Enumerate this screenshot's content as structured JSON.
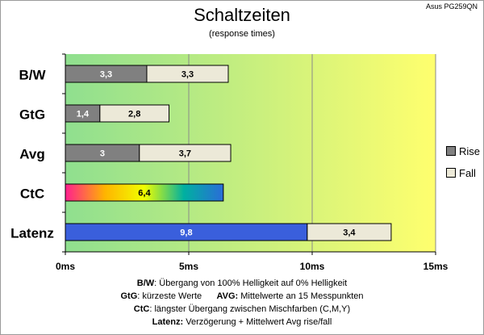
{
  "monitor_label": "Asus PG259QN",
  "chart_data": {
    "type": "bar",
    "orientation": "horizontal",
    "stacked": true,
    "title": "Schaltzeiten",
    "subtitle": "(response times)",
    "categories": [
      "B/W",
      "GtG",
      "Avg",
      "CtC",
      "Latenz"
    ],
    "series": [
      {
        "name": "Rise",
        "values": [
          3.3,
          1.4,
          3,
          6.4,
          9.8
        ],
        "labels": [
          "3,3",
          "1,4",
          "3",
          "6,4",
          "9,8"
        ]
      },
      {
        "name": "Fall",
        "values": [
          3.3,
          2.8,
          3.7,
          null,
          3.4
        ],
        "labels": [
          "3,3",
          "2,8",
          "3,7",
          "",
          "3,4"
        ]
      }
    ],
    "xlim": [
      0,
      15
    ],
    "x_ticks": [
      0,
      5,
      10,
      15
    ],
    "x_tick_labels": [
      "0ms",
      "5ms",
      "10ms",
      "15ms"
    ],
    "grid": true,
    "legend_position": "right",
    "background_gradient": [
      "#8fdf8f",
      "#ffff6e"
    ],
    "colors": {
      "rise": "#808080",
      "fall": "#ece9d8",
      "latenz": "#3a5fdc",
      "ctc_gradient": [
        "#ff1f8f",
        "#ffb400",
        "#f0ff00",
        "#00b0a0",
        "#2a6dd8"
      ]
    }
  },
  "legend": {
    "rise": "Rise",
    "fall": "Fall"
  },
  "notes": {
    "line1_label": "B/W",
    "line1_text": ":  Übergang von 100% Helligkeit auf 0% Helligkeit",
    "line2_label_a": "GtG",
    "line2_text_a": ": kürzeste  Werte",
    "line2_label_b": "AVG:",
    "line2_text_b": " Mittelwerte  an 15 Messpunkten",
    "line3_label": "CtC",
    "line3_text": ": längster Übergang  zwischen Mischfarben (C,M,Y)",
    "line4_label": "Latenz:",
    "line4_text": " Verzögerung  + Mittelwert  Avg rise/fall"
  }
}
